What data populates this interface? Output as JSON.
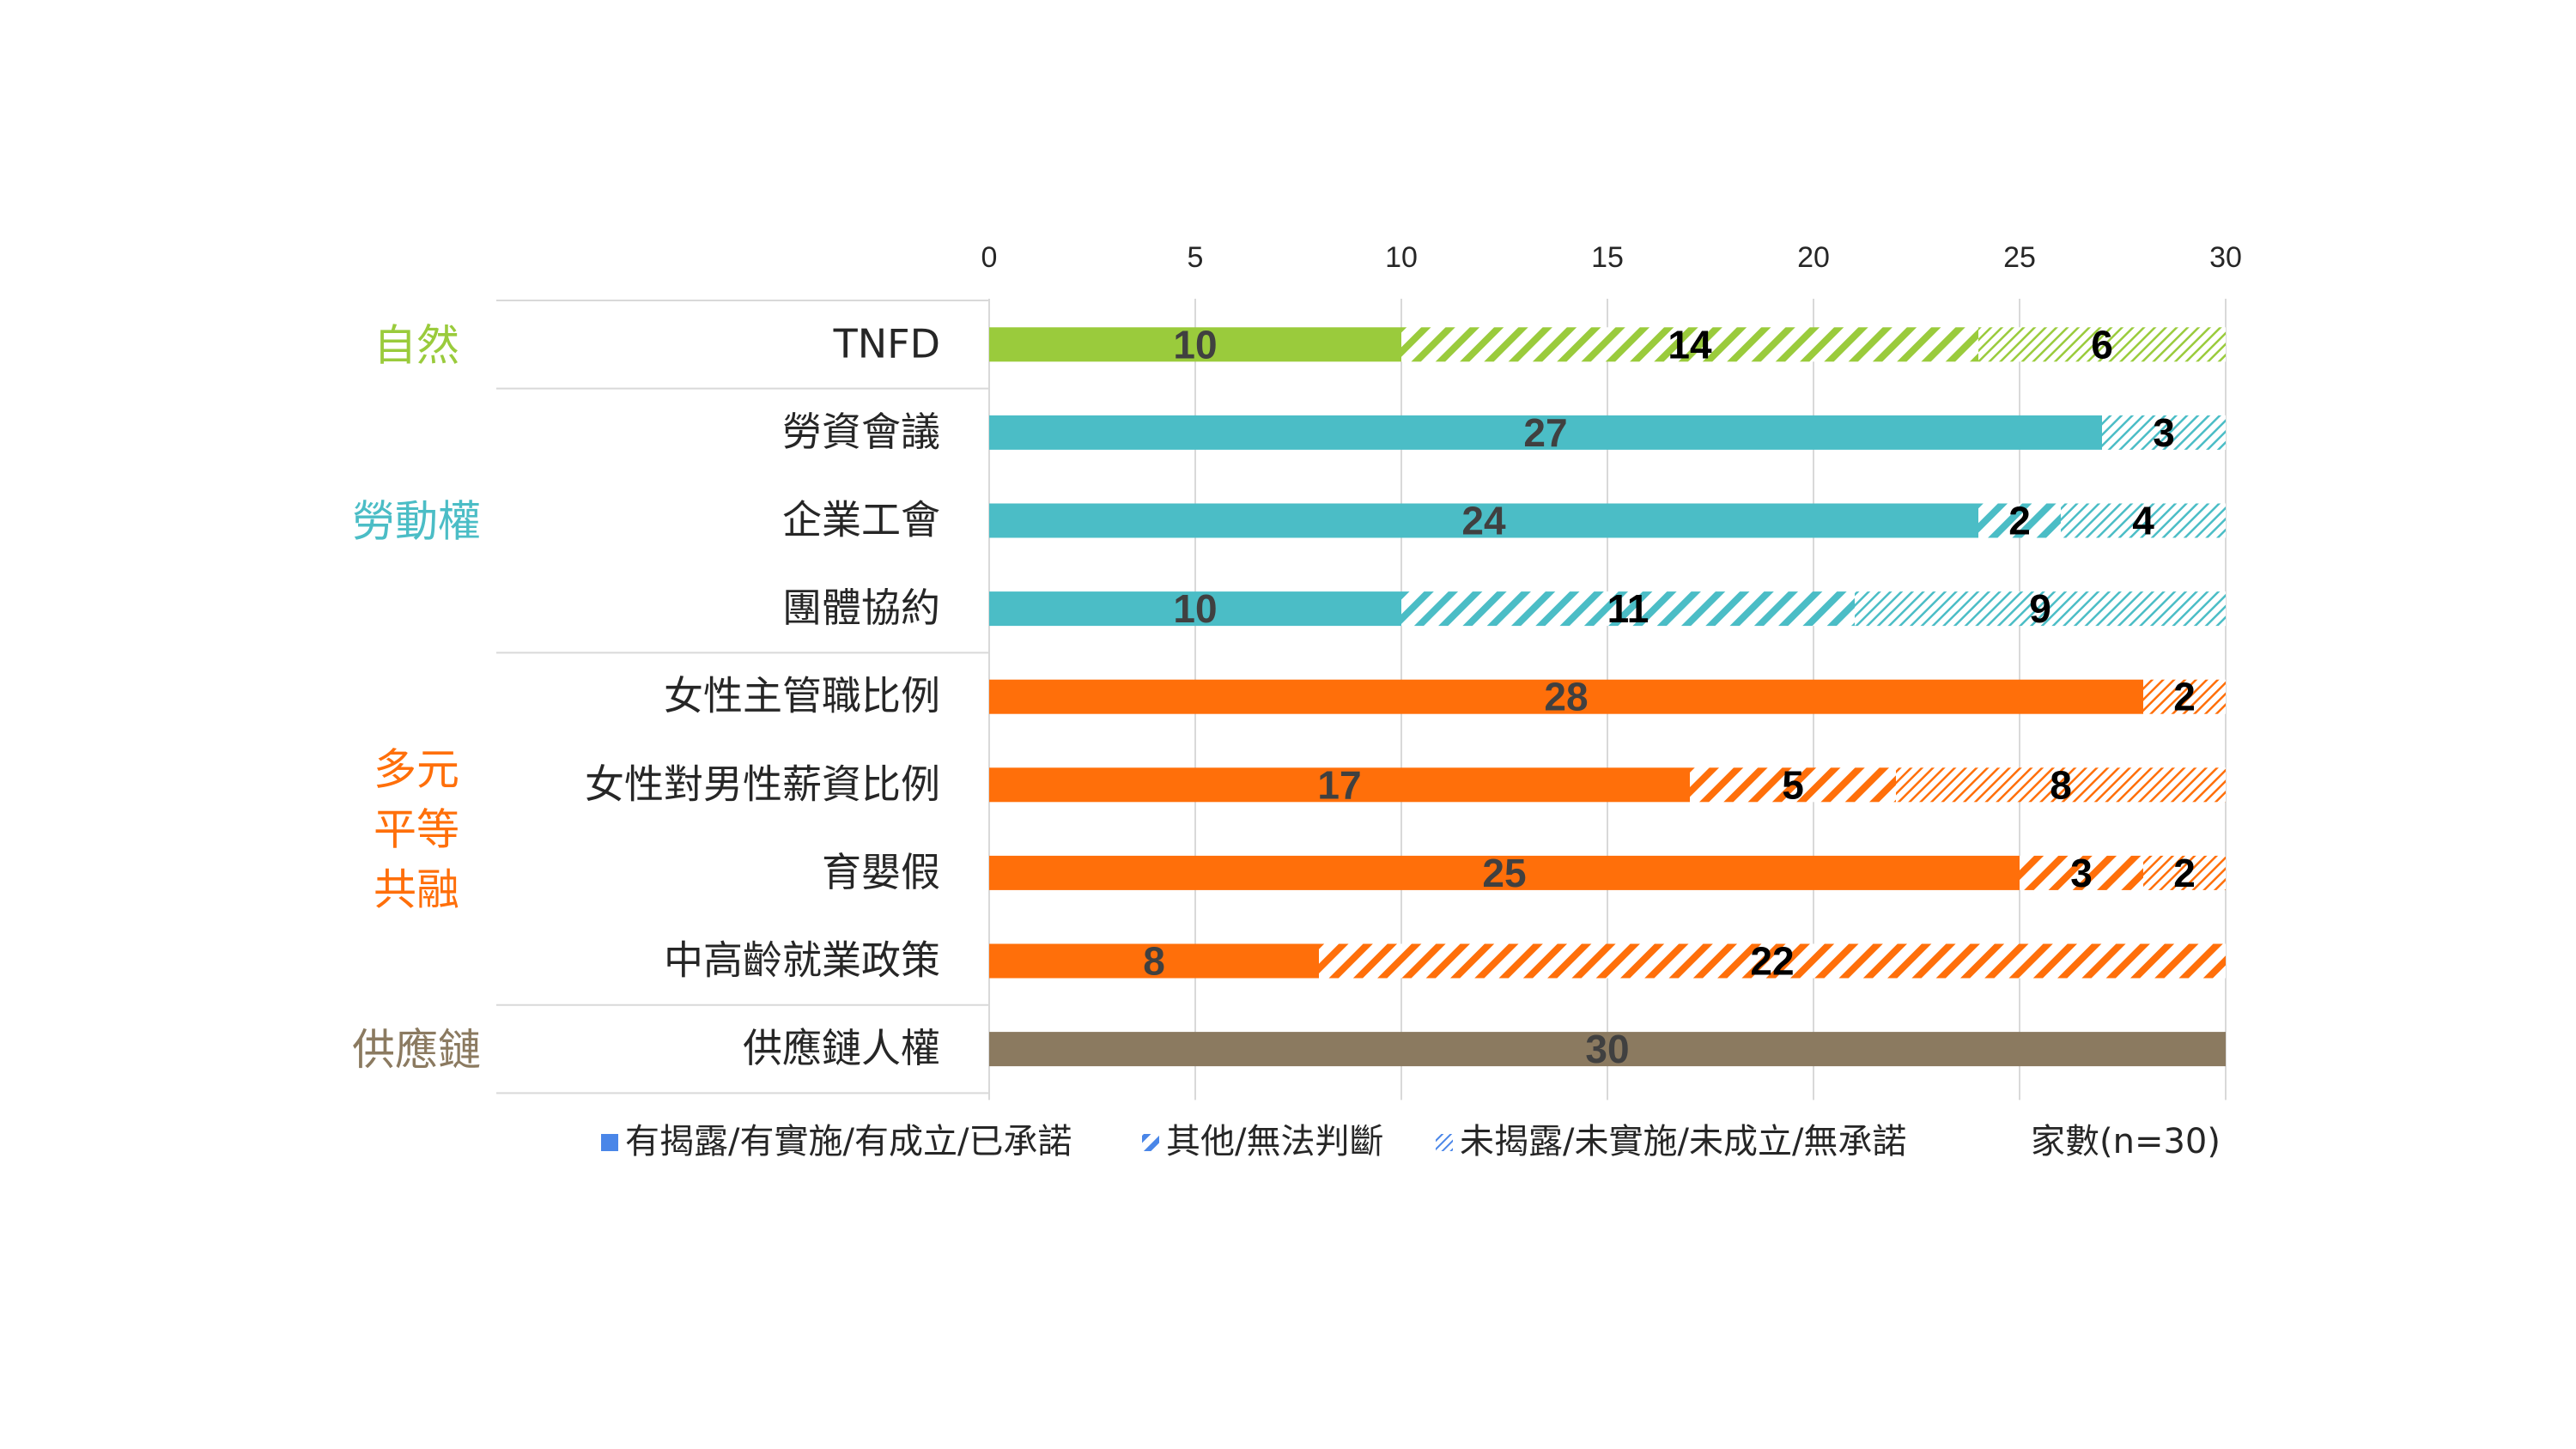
{
  "chart_data": {
    "type": "bar",
    "orientation": "horizontal",
    "stacked": true,
    "x_ticks": [
      "0",
      "5",
      "10",
      "15",
      "20",
      "25",
      "30"
    ],
    "xlim": [
      0,
      30
    ],
    "grid": true,
    "axis_position": "top",
    "groups": [
      {
        "label_lines": [
          "自然"
        ],
        "color": "#9acb3c",
        "rows": [
          0
        ]
      },
      {
        "label_lines": [
          "勞動權"
        ],
        "color": "#4bbdc6",
        "rows": [
          1,
          2,
          3
        ]
      },
      {
        "label_lines": [
          "多元",
          "平等",
          "共融"
        ],
        "color": "#ff6f0a",
        "rows": [
          4,
          5,
          6,
          7
        ]
      },
      {
        "label_lines": [
          "供應鏈"
        ],
        "color": "#8b7a60",
        "rows": [
          8
        ]
      }
    ],
    "categories": [
      "TNFD",
      "勞資會議",
      "企業工會",
      "團體協約",
      "女性主管職比例",
      "女性對男性薪資比例",
      "育嬰假",
      "中高齡就業政策",
      "供應鏈人權"
    ],
    "series": [
      {
        "name": "有揭露/有實施/有成立/已承諾",
        "pattern": "solid",
        "values": [
          10,
          27,
          24,
          10,
          28,
          17,
          25,
          8,
          30
        ]
      },
      {
        "name": "其他/無法判斷",
        "pattern": "wide-diagonal",
        "values": [
          14,
          0,
          2,
          11,
          0,
          5,
          3,
          22,
          0
        ]
      },
      {
        "name": "未揭露/未實施/未成立/無承諾",
        "pattern": "fine-diagonal",
        "values": [
          6,
          3,
          4,
          9,
          2,
          8,
          2,
          0,
          0
        ]
      }
    ],
    "row_colors": [
      "#9acb3c",
      "#4bbdc6",
      "#4bbdc6",
      "#4bbdc6",
      "#ff6f0a",
      "#ff6f0a",
      "#ff6f0a",
      "#ff6f0a",
      "#8b7a60"
    ],
    "legend_swatch_color": "#4a86e8",
    "value_label_colors": {
      "solid": "#404040",
      "other": "#000000"
    },
    "legend_position": "bottom",
    "note": "家數(n=30)"
  }
}
